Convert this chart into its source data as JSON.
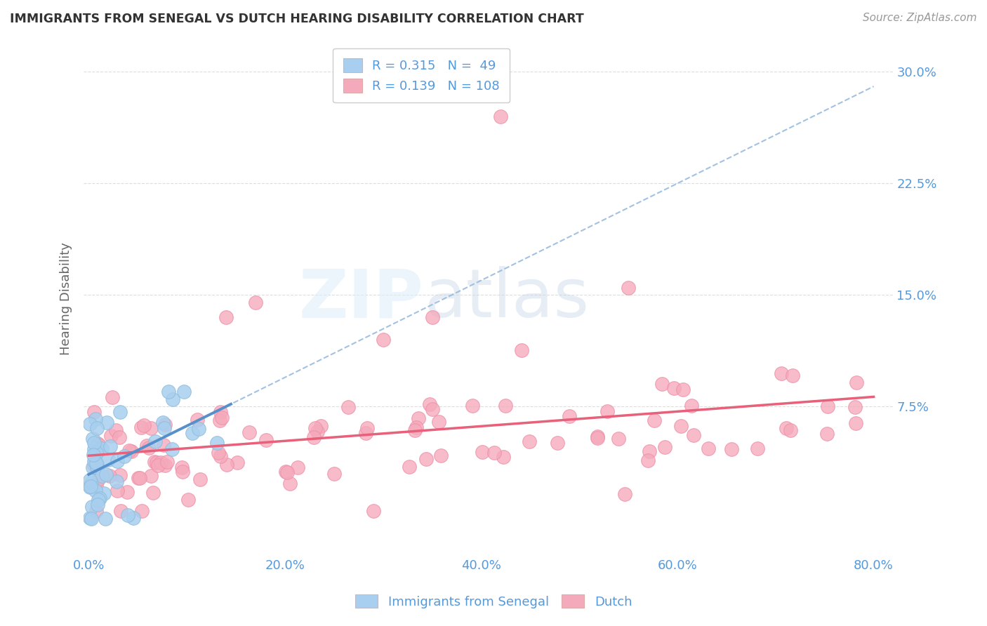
{
  "title": "IMMIGRANTS FROM SENEGAL VS DUTCH HEARING DISABILITY CORRELATION CHART",
  "source": "Source: ZipAtlas.com",
  "ylabel": "Hearing Disability",
  "x_tick_labels": [
    "0.0%",
    "20.0%",
    "40.0%",
    "60.0%",
    "80.0%"
  ],
  "x_tick_positions": [
    0.0,
    0.2,
    0.4,
    0.6,
    0.8
  ],
  "y_tick_labels": [
    "7.5%",
    "15.0%",
    "22.5%",
    "30.0%"
  ],
  "y_tick_positions": [
    0.075,
    0.15,
    0.225,
    0.3
  ],
  "xlim": [
    -0.005,
    0.82
  ],
  "ylim": [
    -0.025,
    0.32
  ],
  "legend_labels": [
    "Immigrants from Senegal",
    "Dutch"
  ],
  "legend_R": [
    0.315,
    0.139
  ],
  "legend_N": [
    49,
    108
  ],
  "blue_color": "#A8CFEF",
  "pink_color": "#F5AABC",
  "blue_scatter_edge": "#90BEDD",
  "pink_scatter_edge": "#EE90A8",
  "blue_line_color": "#5590CC",
  "blue_dash_color": "#99BBDD",
  "pink_line_color": "#E8607A",
  "watermark_zip": "ZIP",
  "watermark_atlas": "atlas",
  "background_color": "#FFFFFF",
  "grid_color": "#DDDDDD",
  "title_color": "#333333",
  "axis_label_color": "#5599DD"
}
